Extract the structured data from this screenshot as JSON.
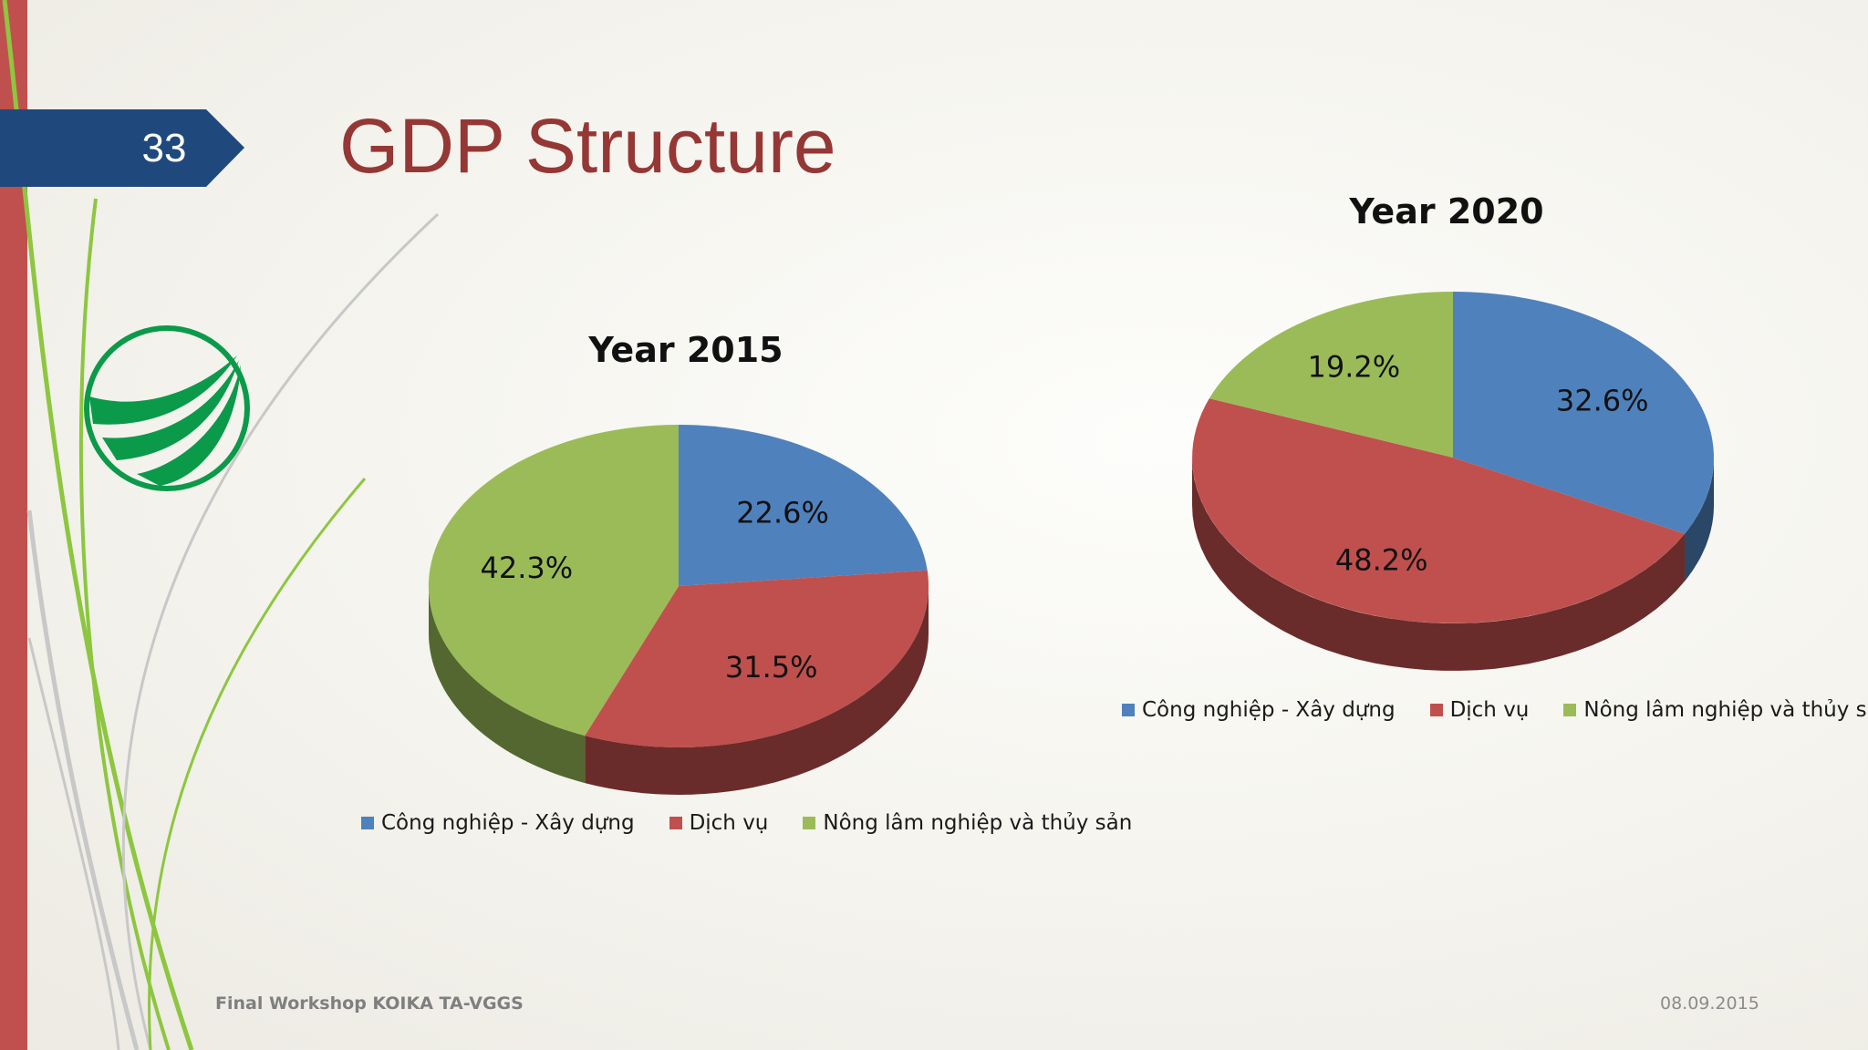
{
  "slide": {
    "number": "33",
    "title": "GDP Structure",
    "footer_left": "Final Workshop KOIKA TA-VGGS",
    "footer_right": "08.09.2015",
    "badge_color": "#1f497d",
    "accent_color": "#c0504d"
  },
  "chart_data": [
    {
      "type": "pie",
      "title": "Year 2015",
      "categories": [
        "Công nghiệp - Xây dựng",
        "Dịch vụ",
        "Nông lâm nghiệp và thủy sản"
      ],
      "values": [
        22.6,
        31.5,
        42.3
      ],
      "labels": [
        "22.6%",
        "31.5%",
        "42.3%"
      ],
      "colors": [
        "#4f81bd",
        "#c0504d",
        "#9bbb59"
      ],
      "legend": "bottom"
    },
    {
      "type": "pie",
      "title": "Year 2020",
      "categories": [
        "Công nghiệp - Xây dựng",
        "Dịch vụ",
        "Nông lâm nghiệp và thủy sản"
      ],
      "values": [
        32.6,
        48.2,
        19.2
      ],
      "labels": [
        "32.6%",
        "48.2%",
        "19.2%"
      ],
      "colors": [
        "#4f81bd",
        "#c0504d",
        "#9bbb59"
      ],
      "legend": "bottom"
    }
  ]
}
